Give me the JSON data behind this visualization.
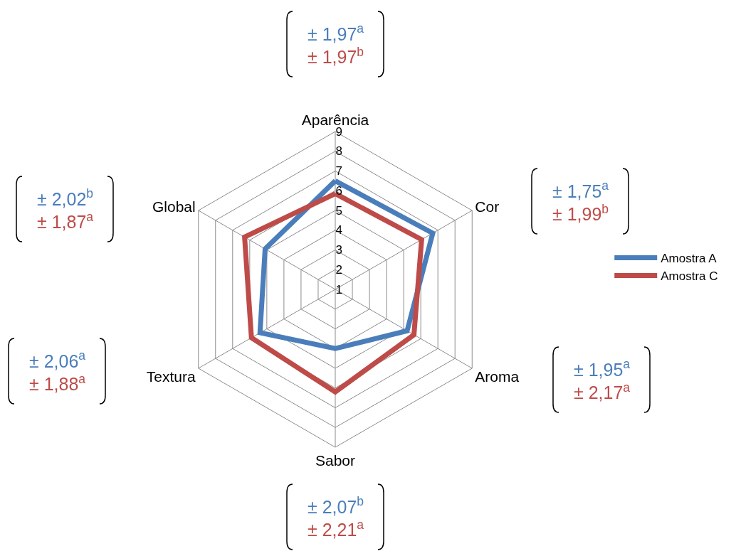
{
  "chart_data": {
    "type": "radar",
    "categories": [
      "Aparência",
      "Cor",
      "Aroma",
      "Sabor",
      "Textura",
      "Global"
    ],
    "series": [
      {
        "name": "Amostra A",
        "color": "#4a7ebb",
        "values": [
          6.5,
          6.7,
          5.2,
          4.0,
          5.4,
          5.1
        ]
      },
      {
        "name": "Amostra C",
        "color": "#be4b48",
        "values": [
          5.85,
          6.05,
          5.6,
          6.2,
          5.9,
          6.3
        ]
      }
    ],
    "ylim": [
      1,
      9
    ],
    "yticks": [
      1,
      2,
      3,
      4,
      5,
      6,
      7,
      8,
      9
    ],
    "grid": true,
    "legend": "right",
    "marker": "none",
    "line_style": "solid",
    "annotations": [
      "± 1,97$^{a}$",
      "± 1,97$^{b}$",
      "± 1,75$^{a}$",
      "± 1,99$^{b}$",
      "± 1,95$^{a}$",
      "± 2,17$^{a}$",
      "± 2,07$^{b}$",
      "± 2,21$^{a}$",
      "± 2,06$^{a}$",
      "± 1,88$^{a}$",
      "± 2,02$^{b}$",
      "± 1,87$^{a}$"
    ]
  }
}
